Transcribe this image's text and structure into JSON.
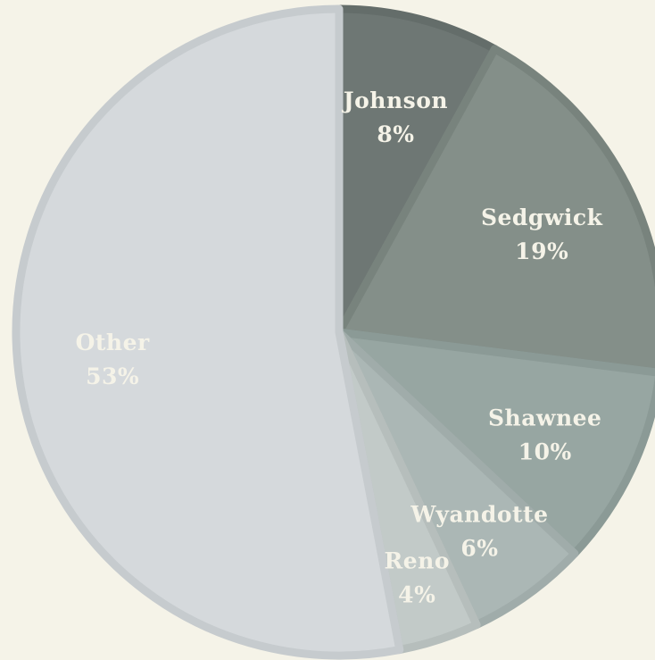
{
  "chart_data": {
    "type": "pie",
    "title": "",
    "slices": [
      {
        "label": "Johnson",
        "value": 8,
        "pct_label": "8%",
        "color": "#6e7774",
        "stroke": "#646d6a",
        "text_color": "#f5f3e8"
      },
      {
        "label": "Sedgwick",
        "value": 19,
        "pct_label": "19%",
        "color": "#848f89",
        "stroke": "#78837d",
        "text_color": "#f5f3e8"
      },
      {
        "label": "Shawnee",
        "value": 10,
        "pct_label": "10%",
        "color": "#97a6a2",
        "stroke": "#8b9a96",
        "text_color": "#f5f3e8"
      },
      {
        "label": "Wyandotte",
        "value": 6,
        "pct_label": "6%",
        "color": "#abb7b5",
        "stroke": "#a0acaa",
        "text_color": "#f5f3e8"
      },
      {
        "label": "Reno",
        "value": 4,
        "pct_label": "4%",
        "color": "#c2cac8",
        "stroke": "#b6bebc",
        "text_color": "#f5f3e8"
      },
      {
        "label": "Other",
        "value": 53,
        "pct_label": "53%",
        "color": "#d5d9dc",
        "stroke": "#c6cbce",
        "text_color": "#f5f3e8"
      }
    ],
    "start_angle": "top",
    "direction": "clockwise",
    "legend": "none"
  }
}
